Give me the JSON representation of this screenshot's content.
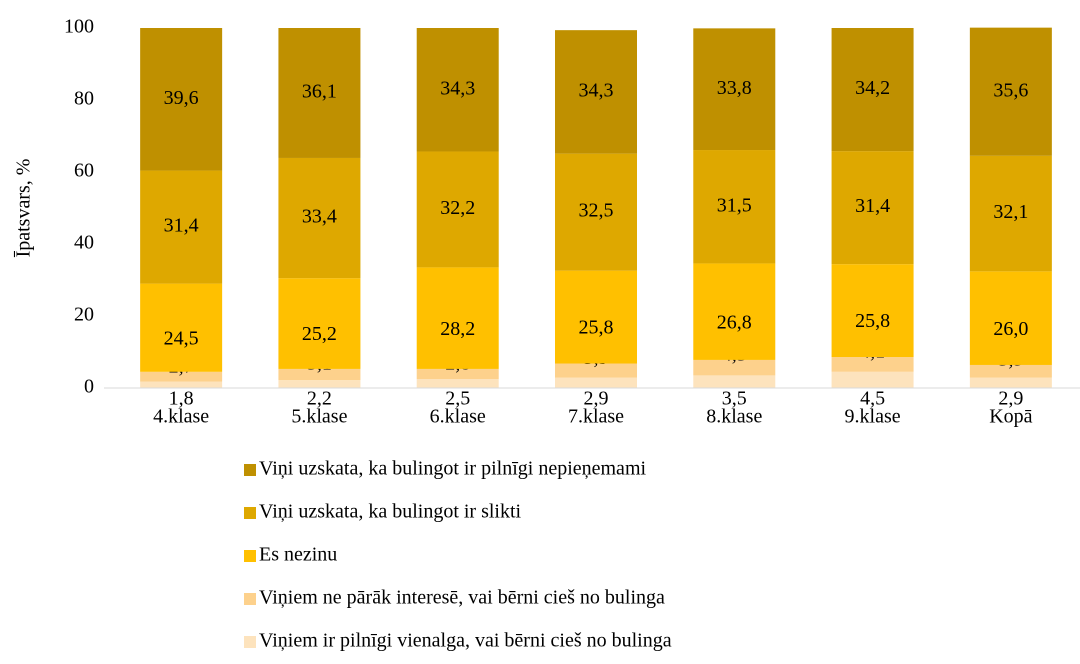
{
  "chart_data": {
    "type": "stacked_bar",
    "ylabel": "Īpatsvars, %",
    "categories": [
      "4.klase",
      "5.klase",
      "6.klase",
      "7.klase",
      "8.klase",
      "9.klase",
      "Kopā"
    ],
    "ylim": [
      0,
      100
    ],
    "yticks": [
      0,
      20,
      40,
      60,
      80,
      100
    ],
    "series": [
      {
        "name": "Viņiem ir pilnīgi vienalga, vai bērni cieš no bulinga",
        "color": "#fde3bd",
        "values": [
          1.8,
          2.2,
          2.5,
          2.9,
          3.5,
          4.5,
          2.9
        ],
        "value_labels": [
          "1,8",
          "2,2",
          "2,5",
          "2,9",
          "3,5",
          "4,5",
          "2,9"
        ]
      },
      {
        "name": "Viņiem ne pārāk interesē, vai bērni cieš no bulinga",
        "color": "#fdd18c",
        "values": [
          2.7,
          3.1,
          2.8,
          3.9,
          4.3,
          4.1,
          3.5
        ],
        "value_labels": [
          "2,7",
          "3,1",
          "2,8",
          "3,9",
          "4,3",
          "4,1",
          "3,5"
        ]
      },
      {
        "name": "Es nezinu",
        "color": "#ffc000",
        "values": [
          24.5,
          25.2,
          28.2,
          25.8,
          26.8,
          25.8,
          26.0
        ],
        "value_labels": [
          "24,5",
          "25,2",
          "28,2",
          "25,8",
          "26,8",
          "25,8",
          "26,0"
        ]
      },
      {
        "name": "Viņi uzskata, ka bulingot ir slikti",
        "color": "#dea800",
        "values": [
          31.4,
          33.4,
          32.2,
          32.5,
          31.5,
          31.4,
          32.1
        ],
        "value_labels": [
          "31,4",
          "33,4",
          "32,2",
          "32,5",
          "31,5",
          "31,4",
          "32,1"
        ]
      },
      {
        "name": "Viņi uzskata, ka bulingot ir pilnīgi nepieņemami",
        "color": "#bf9000",
        "values": [
          39.6,
          36.1,
          34.3,
          34.3,
          33.8,
          34.2,
          35.6
        ],
        "value_labels": [
          "39,6",
          "36,1",
          "34,3",
          "34,3",
          "33,8",
          "34,2",
          "35,6"
        ]
      }
    ]
  }
}
